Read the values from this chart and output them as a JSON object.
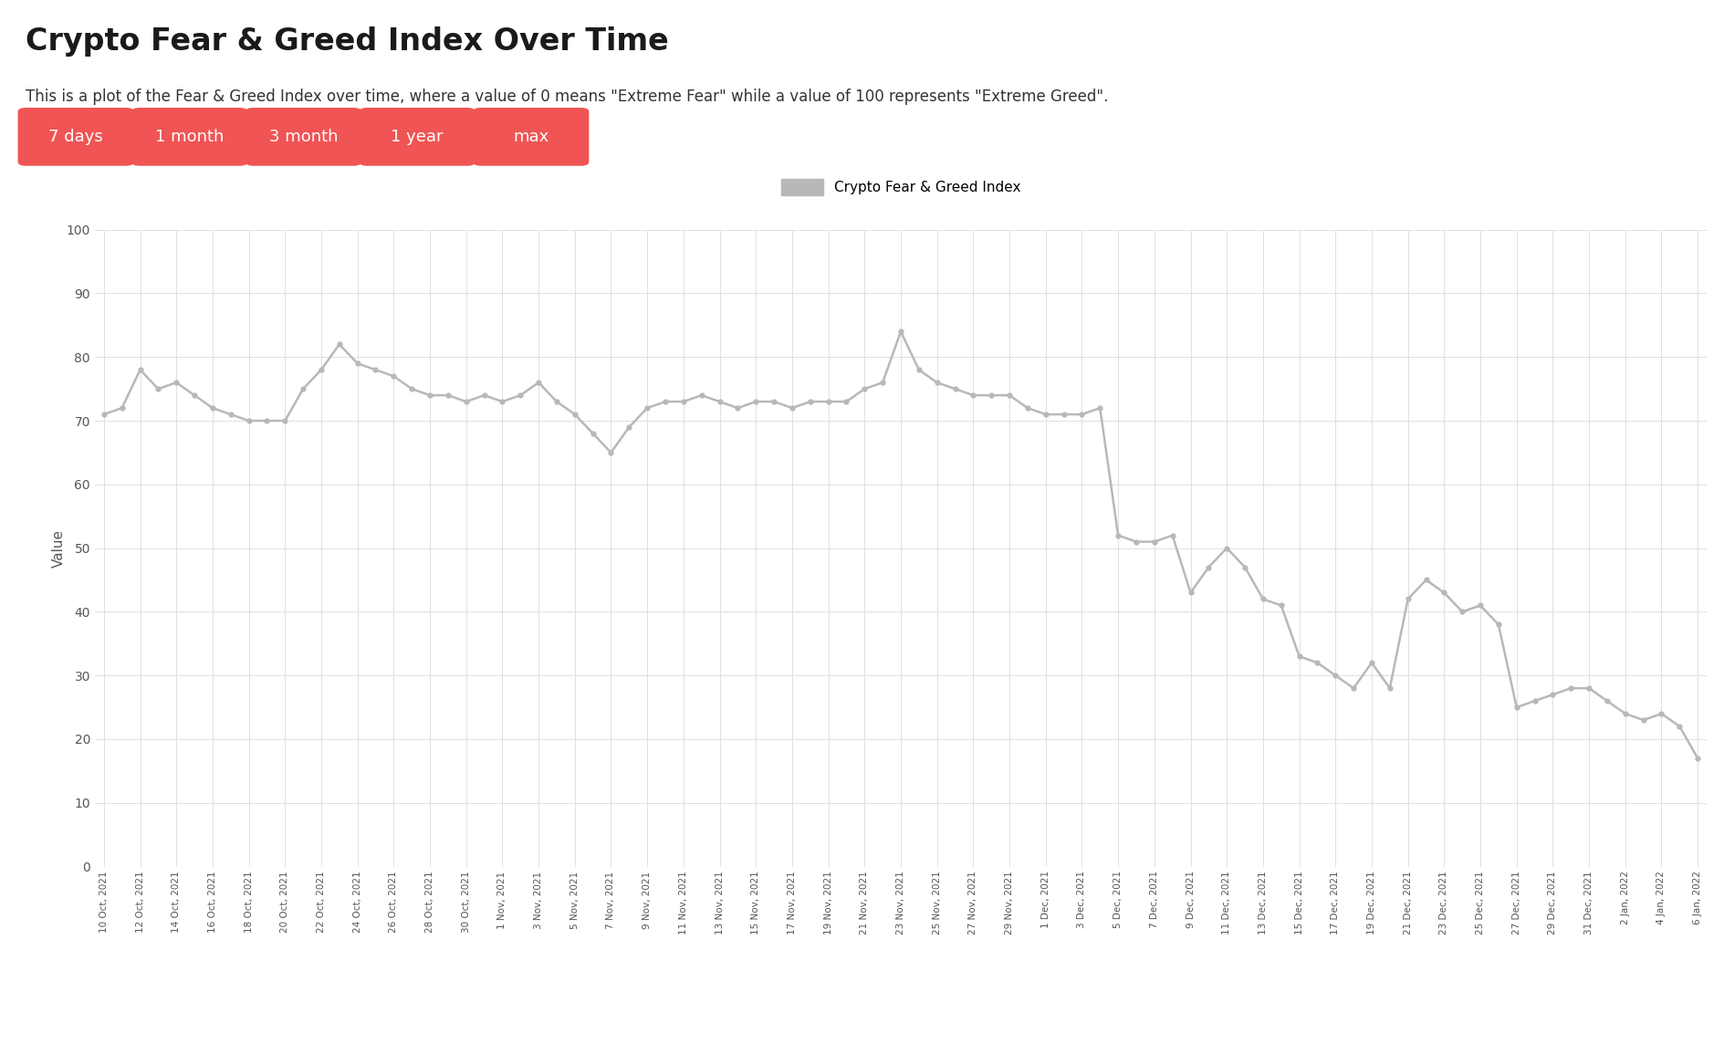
{
  "title": "Crypto Fear & Greed Index Over Time",
  "subtitle": "This is a plot of the Fear & Greed Index over time, where a value of 0 means \"Extreme Fear\" while a value of 100 represents \"Extreme Greed\".",
  "legend_label": "Crypto Fear & Greed Index",
  "ylabel": "Value",
  "buttons": [
    "7 days",
    "1 month",
    "3 month",
    "1 year",
    "max"
  ],
  "button_color": "#f05454",
  "button_text_color": "#ffffff",
  "line_color": "#b8b8b8",
  "background_color": "#ffffff",
  "grid_color": "#e0e0e0",
  "ylim": [
    0,
    100
  ],
  "yticks": [
    0,
    10,
    20,
    30,
    40,
    50,
    60,
    70,
    80,
    90,
    100
  ],
  "dates": [
    "10 Oct, 2021",
    "11 Oct, 2021",
    "12 Oct, 2021",
    "13 Oct, 2021",
    "14 Oct, 2021",
    "15 Oct, 2021",
    "16 Oct, 2021",
    "17 Oct, 2021",
    "18 Oct, 2021",
    "19 Oct, 2021",
    "20 Oct, 2021",
    "21 Oct, 2021",
    "22 Oct, 2021",
    "23 Oct, 2021",
    "24 Oct, 2021",
    "25 Oct, 2021",
    "26 Oct, 2021",
    "27 Oct, 2021",
    "28 Oct, 2021",
    "29 Oct, 2021",
    "30 Oct, 2021",
    "31 Oct, 2021",
    "1 Nov, 2021",
    "2 Nov, 2021",
    "3 Nov, 2021",
    "4 Nov, 2021",
    "5 Nov, 2021",
    "6 Nov, 2021",
    "7 Nov, 2021",
    "8 Nov, 2021",
    "9 Nov, 2021",
    "10 Nov, 2021",
    "11 Nov, 2021",
    "12 Nov, 2021",
    "13 Nov, 2021",
    "14 Nov, 2021",
    "15 Nov, 2021",
    "16 Nov, 2021",
    "17 Nov, 2021",
    "18 Nov, 2021",
    "19 Nov, 2021",
    "20 Nov, 2021",
    "21 Nov, 2021",
    "22 Nov, 2021",
    "23 Nov, 2021",
    "24 Nov, 2021",
    "25 Nov, 2021",
    "26 Nov, 2021",
    "27 Nov, 2021",
    "28 Nov, 2021",
    "29 Nov, 2021",
    "30 Nov, 2021",
    "1 Dec, 2021",
    "2 Dec, 2021",
    "3 Dec, 2021",
    "4 Dec, 2021",
    "5 Dec, 2021",
    "6 Dec, 2021",
    "7 Dec, 2021",
    "8 Dec, 2021",
    "9 Dec, 2021",
    "10 Dec, 2021",
    "11 Dec, 2021",
    "12 Dec, 2021",
    "13 Dec, 2021",
    "14 Dec, 2021",
    "15 Dec, 2021",
    "16 Dec, 2021",
    "17 Dec, 2021",
    "18 Dec, 2021",
    "19 Dec, 2021",
    "20 Dec, 2021",
    "21 Dec, 2021",
    "22 Dec, 2021",
    "23 Dec, 2021",
    "24 Dec, 2021",
    "25 Dec, 2021",
    "26 Dec, 2021",
    "27 Dec, 2021",
    "28 Dec, 2021",
    "29 Dec, 2021",
    "30 Dec, 2021",
    "31 Dec, 2021",
    "1 Jan, 2022",
    "2 Jan, 2022",
    "3 Jan, 2022",
    "4 Jan, 2022",
    "5 Jan, 2022",
    "6 Jan, 2022"
  ],
  "values": [
    71,
    72,
    78,
    75,
    76,
    74,
    72,
    71,
    70,
    70,
    70,
    75,
    78,
    82,
    79,
    78,
    77,
    75,
    74,
    74,
    73,
    74,
    73,
    74,
    76,
    73,
    71,
    68,
    65,
    69,
    72,
    73,
    73,
    74,
    73,
    72,
    73,
    73,
    72,
    73,
    73,
    73,
    75,
    76,
    84,
    78,
    76,
    75,
    74,
    74,
    74,
    72,
    71,
    71,
    71,
    72,
    52,
    51,
    51,
    52,
    43,
    47,
    50,
    47,
    42,
    41,
    33,
    32,
    30,
    28,
    32,
    28,
    42,
    45,
    43,
    40,
    41,
    38,
    25,
    26,
    27,
    28,
    28,
    26,
    24,
    23,
    24,
    22,
    17
  ],
  "xtick_every": 2,
  "tick_labels": [
    "10 Oct, 2021",
    "12 Oct, 2021",
    "14 Oct, 2021",
    "16 Oct, 2021",
    "18 Oct, 2021",
    "20 Oct, 2021",
    "22 Oct, 2021",
    "24 Oct, 2021",
    "26 Oct, 2021",
    "28 Oct, 2021",
    "30 Oct, 2021",
    "1 Nov, 2021",
    "3 Nov, 2021",
    "5 Nov, 2021",
    "7 Nov, 2021",
    "9 Nov, 2021",
    "11 Nov, 2021",
    "13 Nov, 2021",
    "15 Nov, 2021",
    "17 Nov, 2021",
    "19 Nov, 2021",
    "21 Nov, 2021",
    "23 Nov, 2021",
    "25 Nov, 2021",
    "27 Nov, 2021",
    "29 Nov, 2021",
    "1 Dec, 2021",
    "3 Dec, 2021",
    "5 Dec, 2021",
    "7 Dec, 2021",
    "9 Dec, 2021",
    "11 Dec, 2021",
    "13 Dec, 2021",
    "15 Dec, 2021",
    "17 Dec, 2021",
    "19 Dec, 2021",
    "21 Dec, 2021",
    "23 Dec, 2021",
    "25 Dec, 2021",
    "27 Dec, 2021",
    "29 Dec, 2021",
    "31 Dec, 2021",
    "2 Jan, 2022",
    "4 Jan, 2022",
    "6 Jan, 2022"
  ]
}
